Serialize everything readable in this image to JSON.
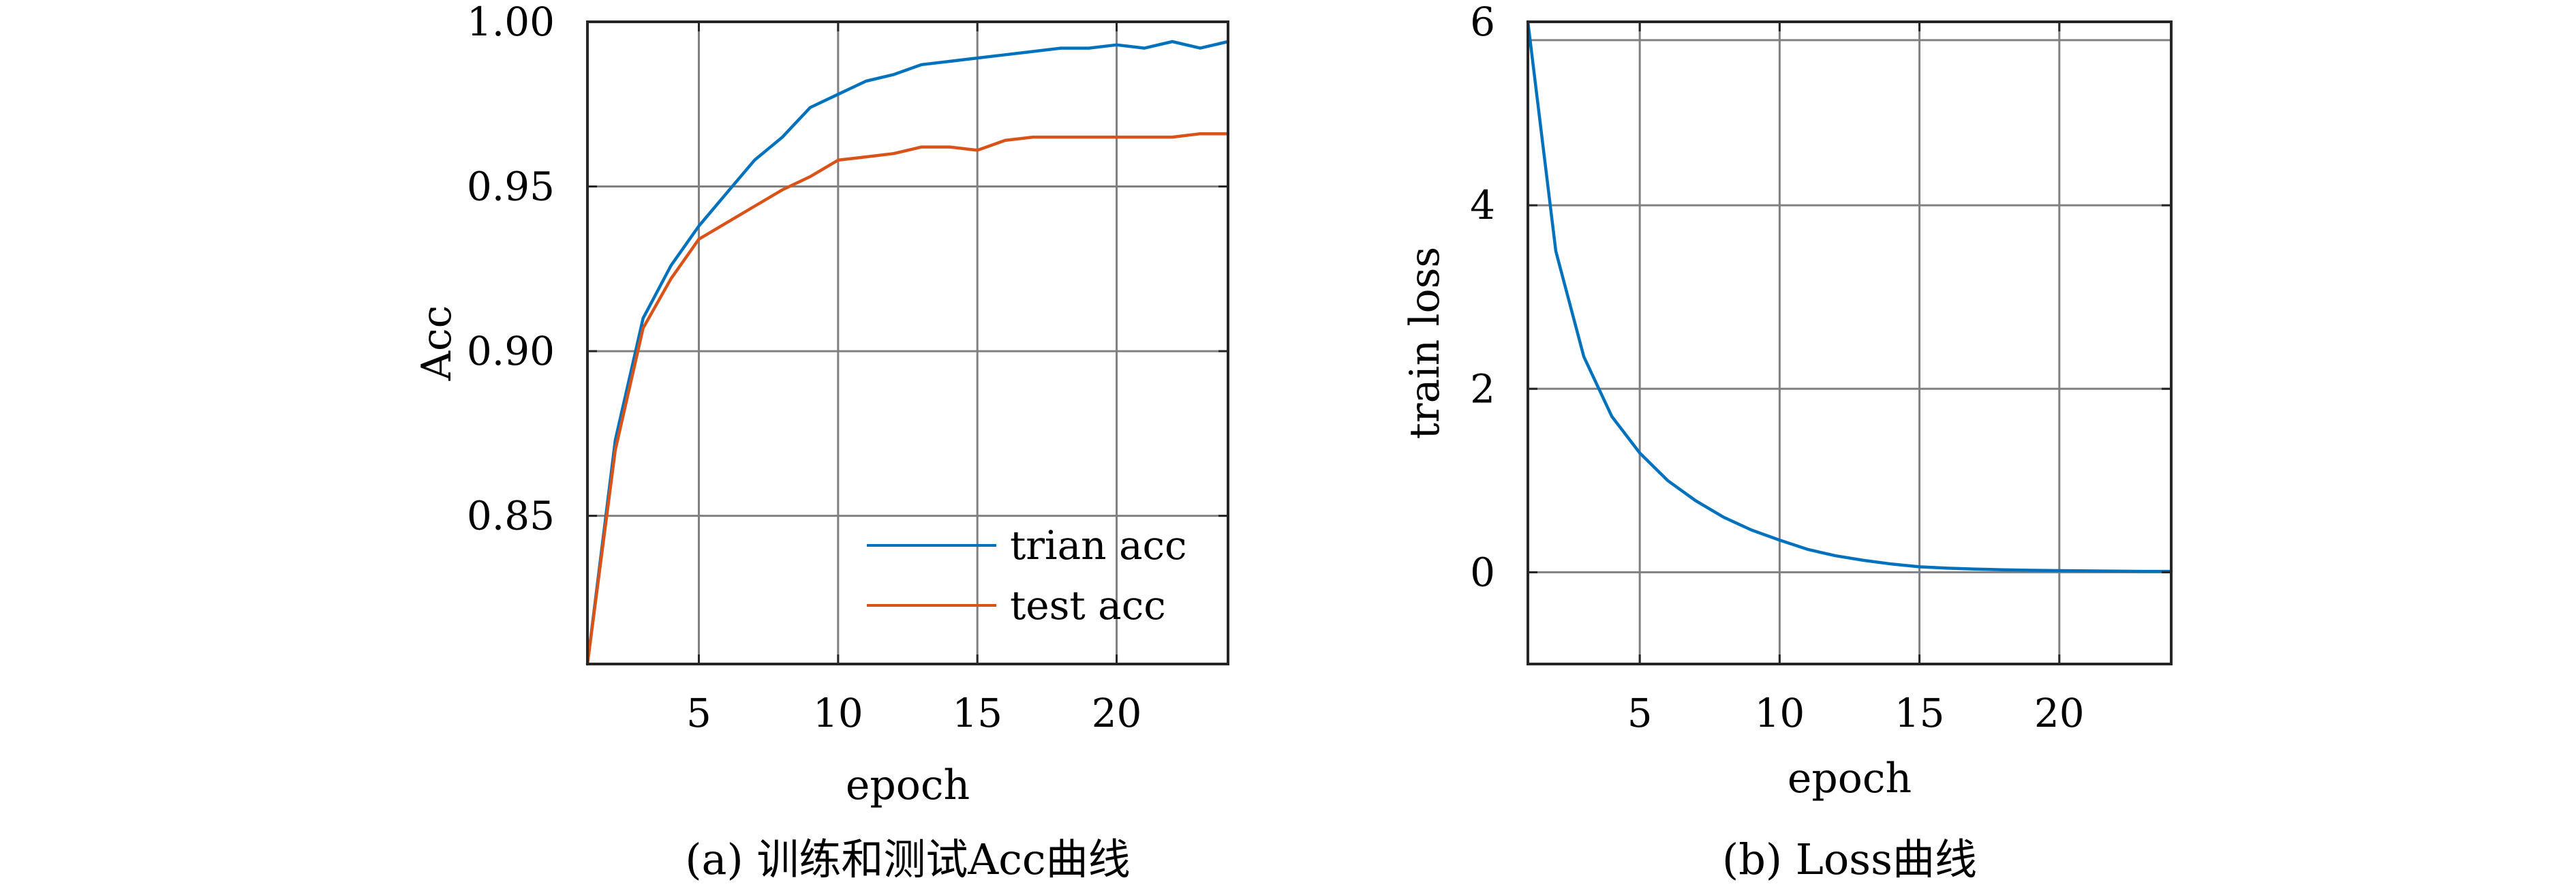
{
  "colors": {
    "series_blue": "#0072BD",
    "series_orange": "#D95319",
    "grid": "#808080",
    "axes": "#262626"
  },
  "chart_data": [
    {
      "type": "line",
      "caption": "(a) 训练和测试Acc曲线",
      "xlabel": "epoch",
      "ylabel": "Acc",
      "xlim": [
        1,
        24
      ],
      "ylim": [
        0.805,
        1.0
      ],
      "xticks": [
        5,
        10,
        15,
        20
      ],
      "xtick_labels": [
        "5",
        "10",
        "15",
        "20"
      ],
      "yticks": [
        0.85,
        0.9,
        0.95,
        1.0
      ],
      "ytick_labels": [
        "0.85",
        "0.90",
        "0.95",
        "1.00"
      ],
      "grid": true,
      "legend_position": "bottom-right",
      "x": [
        1,
        2,
        3,
        4,
        5,
        6,
        7,
        8,
        9,
        10,
        11,
        12,
        13,
        14,
        15,
        16,
        17,
        18,
        19,
        20,
        21,
        22,
        23,
        24
      ],
      "series": [
        {
          "name": "trian acc",
          "color": "#0072BD",
          "values": [
            0.805,
            0.873,
            0.91,
            0.926,
            0.938,
            0.948,
            0.958,
            0.965,
            0.974,
            0.978,
            0.982,
            0.984,
            0.987,
            0.988,
            0.989,
            0.99,
            0.991,
            0.992,
            0.992,
            0.993,
            0.992,
            0.994,
            0.992,
            0.994
          ]
        },
        {
          "name": "test acc",
          "color": "#D95319",
          "values": [
            0.805,
            0.87,
            0.907,
            0.922,
            0.934,
            0.939,
            0.944,
            0.949,
            0.953,
            0.958,
            0.959,
            0.96,
            0.962,
            0.962,
            0.961,
            0.964,
            0.965,
            0.965,
            0.965,
            0.965,
            0.965,
            0.965,
            0.966,
            0.966
          ]
        }
      ]
    },
    {
      "type": "line",
      "caption": "(b) Loss曲线",
      "xlabel": "epoch",
      "ylabel": "train loss",
      "xlim": [
        1,
        24
      ],
      "ylim": [
        -1.0,
        6.0
      ],
      "xticks": [
        5,
        10,
        15,
        20
      ],
      "xtick_labels": [
        "5",
        "10",
        "15",
        "20"
      ],
      "yticks": [
        0,
        2,
        4,
        6
      ],
      "ytick_labels": [
        "0",
        "2",
        "4",
        "6"
      ],
      "grid": true,
      "extra_grid_y": [
        5.8
      ],
      "x": [
        1,
        2,
        3,
        4,
        5,
        6,
        7,
        8,
        9,
        10,
        11,
        12,
        13,
        14,
        15,
        16,
        17,
        18,
        19,
        20,
        21,
        22,
        23,
        24
      ],
      "series": [
        {
          "color": "#0072BD",
          "values": [
            6.0,
            3.5,
            2.35,
            1.7,
            1.3,
            1.0,
            0.78,
            0.6,
            0.46,
            0.35,
            0.25,
            0.18,
            0.13,
            0.09,
            0.06,
            0.045,
            0.035,
            0.028,
            0.022,
            0.018,
            0.015,
            0.012,
            0.01,
            0.01
          ]
        }
      ]
    }
  ]
}
